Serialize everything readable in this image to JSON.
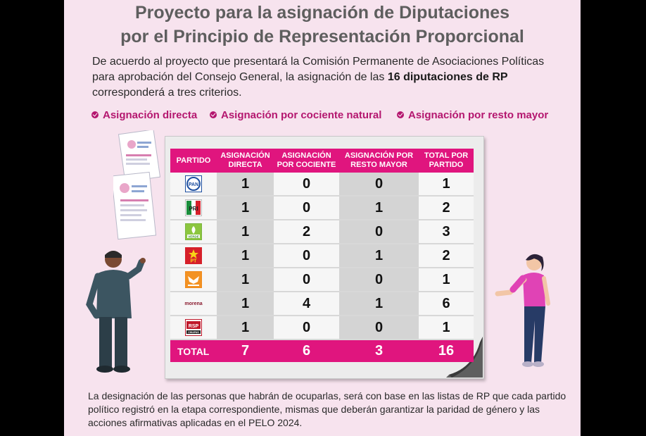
{
  "header": {
    "title_line1": "Proyecto para la asignación de Diputaciones",
    "title_line2": "por el Principio de Representación Proporcional"
  },
  "intro": {
    "text_before": "De acuerdo al proyecto que presentará la Comisión Permanente de Asociaciones Políticas para aprobación del Consejo General, la asignación de las",
    "highlight": "16 diputaciones de RP",
    "text_after": "corresponderá a tres criterios."
  },
  "criteria": [
    {
      "label": "Asignación directa"
    },
    {
      "label": "Asignación por cociente natural"
    },
    {
      "label": "Asignación por resto mayor"
    }
  ],
  "table": {
    "headers": [
      "PARTIDO",
      "ASIGNACIÓN DIRECTA",
      "ASIGNACIÓN POR COCIENTE",
      "ASIGNACIÓN POR RESTO MAYOR",
      "TOTAL POR PARTIDO"
    ],
    "rows": [
      {
        "party_logo": "PAN",
        "directa": "1",
        "cociente": "0",
        "resto": "0",
        "total": "1"
      },
      {
        "party_logo": "PRI",
        "directa": "1",
        "cociente": "0",
        "resto": "1",
        "total": "2"
      },
      {
        "party_logo": "VERDE",
        "directa": "1",
        "cociente": "2",
        "resto": "0",
        "total": "3"
      },
      {
        "party_logo": "PT",
        "directa": "1",
        "cociente": "0",
        "resto": "1",
        "total": "2"
      },
      {
        "party_logo": "MOVIMIENTO CIUDADANO",
        "directa": "1",
        "cociente": "0",
        "resto": "0",
        "total": "1"
      },
      {
        "party_logo": "morena",
        "directa": "1",
        "cociente": "4",
        "resto": "1",
        "total": "6"
      },
      {
        "party_logo": "RSP CHIAPAS",
        "directa": "1",
        "cociente": "0",
        "resto": "0",
        "total": "1"
      }
    ],
    "totals": {
      "label": "TOTAL",
      "directa": "7",
      "cociente": "6",
      "resto": "3",
      "total": "16"
    }
  },
  "footer": {
    "text": "La designación de las personas que habrán de ocuparlas, será con base en las listas de RP que cada partido político registró en la etapa correspondiente, mismas que deberán garantizar la paridad de género y las acciones afirmativas aplicadas en el PELO 2024."
  },
  "icons": [
    "check-icon",
    "pan-logo-icon",
    "pri-logo-icon",
    "verde-logo-icon",
    "pt-logo-icon",
    "mc-logo-icon",
    "morena-logo-icon",
    "rsp-logo-icon"
  ],
  "colors": {
    "accent": "#e0157e",
    "criteria": "#b4176f",
    "panel_bg": "#f7e3ee",
    "title": "#5e5e5e"
  }
}
